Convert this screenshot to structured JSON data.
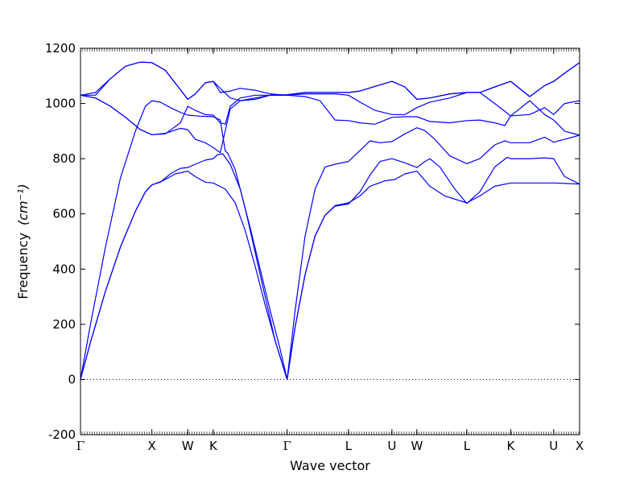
{
  "chart_data": {
    "type": "line",
    "title": "",
    "xlabel": "Wave vector",
    "ylabel": "Frequency",
    "ylabel_unit": "(cm⁻¹)",
    "ylim": [
      -200,
      1200
    ],
    "yticks": [
      -200,
      0,
      200,
      400,
      600,
      800,
      1000,
      1200
    ],
    "grid": false,
    "line_color": "#0000ff",
    "zero_line_color": "#000000",
    "high_symmetry_points": [
      {
        "label": "Γ",
        "x": 0.0
      },
      {
        "label": "X",
        "x": 0.143
      },
      {
        "label": "W",
        "x": 0.215
      },
      {
        "label": "K",
        "x": 0.266
      },
      {
        "label": "Γ",
        "x": 0.414
      },
      {
        "label": "L",
        "x": 0.537
      },
      {
        "label": "U",
        "x": 0.624
      },
      {
        "label": "W",
        "x": 0.674
      },
      {
        "label": "L",
        "x": 0.774
      },
      {
        "label": "K",
        "x": 0.862
      },
      {
        "label": "U",
        "x": 0.948
      },
      {
        "label": "X",
        "x": 1.0
      }
    ],
    "series": [
      {
        "values": [
          [
            0,
            0
          ],
          [
            0.02,
            135
          ],
          [
            0.05,
            320
          ],
          [
            0.08,
            480
          ],
          [
            0.11,
            610
          ],
          [
            0.13,
            680
          ],
          [
            0.143,
            705
          ],
          [
            0.165,
            720
          ],
          [
            0.19,
            745
          ],
          [
            0.215,
            755
          ],
          [
            0.23,
            735
          ],
          [
            0.25,
            715
          ],
          [
            0.266,
            712
          ],
          [
            0.29,
            690
          ],
          [
            0.31,
            640
          ],
          [
            0.33,
            540
          ],
          [
            0.35,
            410
          ],
          [
            0.37,
            270
          ],
          [
            0.39,
            140
          ],
          [
            0.414,
            0
          ],
          [
            0.43,
            190
          ],
          [
            0.45,
            380
          ],
          [
            0.47,
            520
          ],
          [
            0.49,
            595
          ],
          [
            0.51,
            630
          ],
          [
            0.537,
            640
          ],
          [
            0.56,
            665
          ],
          [
            0.58,
            700
          ],
          [
            0.61,
            720
          ],
          [
            0.63,
            725
          ],
          [
            0.65,
            745
          ],
          [
            0.674,
            755
          ],
          [
            0.7,
            700
          ],
          [
            0.73,
            665
          ],
          [
            0.774,
            640
          ],
          [
            0.8,
            665
          ],
          [
            0.83,
            700
          ],
          [
            0.862,
            712
          ],
          [
            0.9,
            712
          ],
          [
            0.948,
            712
          ],
          [
            0.975,
            710
          ],
          [
            1.0,
            708
          ]
        ]
      },
      {
        "values": [
          [
            0,
            0
          ],
          [
            0.02,
            135
          ],
          [
            0.05,
            320
          ],
          [
            0.08,
            480
          ],
          [
            0.11,
            610
          ],
          [
            0.13,
            680
          ],
          [
            0.143,
            705
          ],
          [
            0.16,
            715
          ],
          [
            0.18,
            745
          ],
          [
            0.2,
            765
          ],
          [
            0.215,
            768
          ],
          [
            0.23,
            780
          ],
          [
            0.25,
            795
          ],
          [
            0.266,
            800
          ],
          [
            0.275,
            815
          ],
          [
            0.285,
            818
          ],
          [
            0.3,
            780
          ],
          [
            0.32,
            690
          ],
          [
            0.34,
            550
          ],
          [
            0.36,
            400
          ],
          [
            0.38,
            250
          ],
          [
            0.4,
            110
          ],
          [
            0.414,
            0
          ],
          [
            0.43,
            190
          ],
          [
            0.45,
            380
          ],
          [
            0.47,
            520
          ],
          [
            0.49,
            595
          ],
          [
            0.51,
            628
          ],
          [
            0.537,
            636
          ],
          [
            0.56,
            680
          ],
          [
            0.58,
            740
          ],
          [
            0.6,
            790
          ],
          [
            0.624,
            800
          ],
          [
            0.65,
            785
          ],
          [
            0.674,
            768
          ],
          [
            0.69,
            790
          ],
          [
            0.7,
            800
          ],
          [
            0.72,
            770
          ],
          [
            0.75,
            690
          ],
          [
            0.774,
            638
          ],
          [
            0.8,
            680
          ],
          [
            0.83,
            770
          ],
          [
            0.855,
            805
          ],
          [
            0.862,
            800
          ],
          [
            0.9,
            800
          ],
          [
            0.93,
            803
          ],
          [
            0.948,
            800
          ],
          [
            0.97,
            735
          ],
          [
            1.0,
            708
          ]
        ]
      },
      {
        "values": [
          [
            0,
            0
          ],
          [
            0.02,
            200
          ],
          [
            0.05,
            480
          ],
          [
            0.08,
            730
          ],
          [
            0.11,
            900
          ],
          [
            0.13,
            990
          ],
          [
            0.143,
            1010
          ],
          [
            0.16,
            1005
          ],
          [
            0.18,
            985
          ],
          [
            0.2,
            968
          ],
          [
            0.215,
            958
          ],
          [
            0.24,
            954
          ],
          [
            0.266,
            952
          ],
          [
            0.28,
            940
          ],
          [
            0.29,
            828
          ],
          [
            0.295,
            820
          ],
          [
            0.31,
            760
          ],
          [
            0.33,
            620
          ],
          [
            0.35,
            460
          ],
          [
            0.37,
            300
          ],
          [
            0.39,
            140
          ],
          [
            0.414,
            0
          ],
          [
            0.43,
            250
          ],
          [
            0.45,
            520
          ],
          [
            0.47,
            690
          ],
          [
            0.49,
            770
          ],
          [
            0.51,
            780
          ],
          [
            0.537,
            790
          ],
          [
            0.56,
            830
          ],
          [
            0.58,
            865
          ],
          [
            0.6,
            858
          ],
          [
            0.624,
            862
          ],
          [
            0.65,
            890
          ],
          [
            0.674,
            912
          ],
          [
            0.69,
            902
          ],
          [
            0.71,
            870
          ],
          [
            0.74,
            810
          ],
          [
            0.774,
            782
          ],
          [
            0.8,
            800
          ],
          [
            0.83,
            850
          ],
          [
            0.85,
            865
          ],
          [
            0.862,
            858
          ],
          [
            0.9,
            858
          ],
          [
            0.93,
            878
          ],
          [
            0.948,
            860
          ],
          [
            0.97,
            870
          ],
          [
            1.0,
            885
          ]
        ]
      },
      {
        "values": [
          [
            0,
            1030
          ],
          [
            0.03,
            1020
          ],
          [
            0.06,
            990
          ],
          [
            0.09,
            950
          ],
          [
            0.12,
            905
          ],
          [
            0.143,
            887
          ],
          [
            0.17,
            892
          ],
          [
            0.2,
            910
          ],
          [
            0.215,
            905
          ],
          [
            0.23,
            870
          ],
          [
            0.25,
            858
          ],
          [
            0.266,
            840
          ],
          [
            0.28,
            822
          ],
          [
            0.3,
            980
          ],
          [
            0.32,
            1010
          ],
          [
            0.35,
            1015
          ],
          [
            0.38,
            1030
          ],
          [
            0.414,
            1030
          ],
          [
            0.45,
            1025
          ],
          [
            0.48,
            1010
          ],
          [
            0.51,
            940
          ],
          [
            0.537,
            938
          ],
          [
            0.56,
            930
          ],
          [
            0.59,
            925
          ],
          [
            0.624,
            950
          ],
          [
            0.65,
            952
          ],
          [
            0.674,
            952
          ],
          [
            0.7,
            935
          ],
          [
            0.74,
            930
          ],
          [
            0.774,
            938
          ],
          [
            0.8,
            940
          ],
          [
            0.83,
            930
          ],
          [
            0.85,
            920
          ],
          [
            0.862,
            955
          ],
          [
            0.9,
            1010
          ],
          [
            0.93,
            960
          ],
          [
            0.948,
            940
          ],
          [
            0.97,
            900
          ],
          [
            1.0,
            885
          ]
        ]
      },
      {
        "values": [
          [
            0,
            1030
          ],
          [
            0.03,
            1020
          ],
          [
            0.06,
            990
          ],
          [
            0.09,
            950
          ],
          [
            0.12,
            905
          ],
          [
            0.143,
            887
          ],
          [
            0.17,
            890
          ],
          [
            0.2,
            930
          ],
          [
            0.215,
            990
          ],
          [
            0.23,
            975
          ],
          [
            0.25,
            960
          ],
          [
            0.266,
            958
          ],
          [
            0.28,
            930
          ],
          [
            0.29,
            925
          ],
          [
            0.3,
            990
          ],
          [
            0.32,
            1020
          ],
          [
            0.35,
            1030
          ],
          [
            0.414,
            1030
          ],
          [
            0.45,
            1035
          ],
          [
            0.48,
            1035
          ],
          [
            0.51,
            1035
          ],
          [
            0.537,
            1030
          ],
          [
            0.56,
            1005
          ],
          [
            0.59,
            975
          ],
          [
            0.624,
            960
          ],
          [
            0.65,
            960
          ],
          [
            0.674,
            985
          ],
          [
            0.7,
            1005
          ],
          [
            0.74,
            1020
          ],
          [
            0.774,
            1040
          ],
          [
            0.8,
            1040
          ],
          [
            0.83,
            1000
          ],
          [
            0.862,
            955
          ],
          [
            0.9,
            960
          ],
          [
            0.93,
            985
          ],
          [
            0.948,
            960
          ],
          [
            0.97,
            1000
          ],
          [
            1.0,
            1010
          ]
        ]
      },
      {
        "values": [
          [
            0,
            1030
          ],
          [
            0.03,
            1040
          ],
          [
            0.06,
            1090
          ],
          [
            0.09,
            1135
          ],
          [
            0.12,
            1150
          ],
          [
            0.143,
            1148
          ],
          [
            0.17,
            1120
          ],
          [
            0.2,
            1050
          ],
          [
            0.215,
            1015
          ],
          [
            0.23,
            1035
          ],
          [
            0.25,
            1075
          ],
          [
            0.266,
            1080
          ],
          [
            0.28,
            1055
          ],
          [
            0.3,
            1020
          ],
          [
            0.32,
            1010
          ],
          [
            0.35,
            1020
          ],
          [
            0.38,
            1030
          ],
          [
            0.414,
            1032
          ],
          [
            0.45,
            1040
          ],
          [
            0.48,
            1040
          ],
          [
            0.51,
            1040
          ],
          [
            0.537,
            1040
          ],
          [
            0.56,
            1045
          ],
          [
            0.59,
            1062
          ],
          [
            0.624,
            1080
          ],
          [
            0.65,
            1060
          ],
          [
            0.674,
            1015
          ],
          [
            0.7,
            1020
          ],
          [
            0.74,
            1035
          ],
          [
            0.774,
            1040
          ],
          [
            0.8,
            1040
          ],
          [
            0.83,
            1060
          ],
          [
            0.862,
            1080
          ],
          [
            0.9,
            1025
          ],
          [
            0.93,
            1065
          ],
          [
            0.948,
            1080
          ],
          [
            0.97,
            1110
          ],
          [
            1.0,
            1148
          ]
        ]
      },
      {
        "values": [
          [
            0,
            1030
          ],
          [
            0.03,
            1030
          ],
          [
            0.06,
            1090
          ],
          [
            0.09,
            1135
          ],
          [
            0.12,
            1150
          ],
          [
            0.143,
            1148
          ],
          [
            0.17,
            1120
          ],
          [
            0.2,
            1050
          ],
          [
            0.215,
            1015
          ],
          [
            0.23,
            1035
          ],
          [
            0.25,
            1075
          ],
          [
            0.266,
            1080
          ],
          [
            0.28,
            1040
          ],
          [
            0.3,
            1045
          ],
          [
            0.32,
            1055
          ],
          [
            0.35,
            1048
          ],
          [
            0.38,
            1035
          ],
          [
            0.414,
            1030
          ],
          [
            0.45,
            1040
          ],
          [
            0.48,
            1040
          ],
          [
            0.51,
            1040
          ],
          [
            0.537,
            1040
          ],
          [
            0.56,
            1045
          ],
          [
            0.59,
            1062
          ],
          [
            0.624,
            1080
          ],
          [
            0.65,
            1060
          ],
          [
            0.674,
            1015
          ],
          [
            0.7,
            1020
          ],
          [
            0.74,
            1035
          ],
          [
            0.774,
            1040
          ],
          [
            0.8,
            1040
          ],
          [
            0.83,
            1060
          ],
          [
            0.862,
            1080
          ],
          [
            0.9,
            1025
          ],
          [
            0.93,
            1065
          ],
          [
            0.948,
            1080
          ],
          [
            0.97,
            1110
          ],
          [
            1.0,
            1148
          ]
        ]
      }
    ]
  }
}
